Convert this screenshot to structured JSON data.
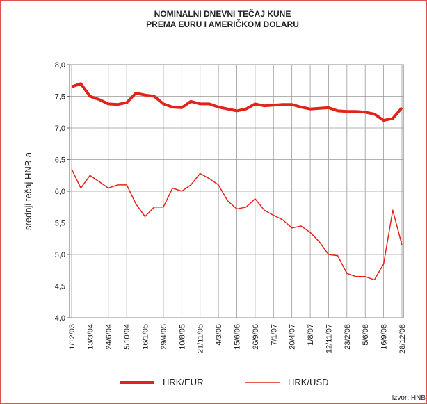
{
  "chart_data": {
    "type": "line",
    "title": [
      "NOMINALNI DNEVNI TEČAJ KUNE",
      "PREMA EURU I AMERIČKOM DOLARU"
    ],
    "y_label": "srednji tečaj HNB-a",
    "source": "Izvor: HNB",
    "categories": [
      "1/12/03.",
      null,
      "13/3/04.",
      null,
      "24/6/04.",
      null,
      "5/10/04.",
      null,
      "16/1/05.",
      null,
      "29/4/05.",
      null,
      "10/8/05.",
      null,
      "21/11/05.",
      null,
      "4/3/06.",
      null,
      "15/6/06.",
      null,
      "26/9/06.",
      null,
      "7/1/07.",
      null,
      "20/4/07.",
      null,
      "1/8/07.",
      null,
      "12/11/07.",
      null,
      "23/2/08.",
      null,
      "5/6/08.",
      null,
      "16/9/08.",
      null,
      "28/12/08."
    ],
    "series": [
      {
        "name": "HRK/EUR",
        "color": "#e2231a",
        "width": 4,
        "values": [
          7.65,
          7.7,
          7.5,
          7.45,
          7.38,
          7.37,
          7.4,
          7.55,
          7.52,
          7.5,
          7.38,
          7.33,
          7.32,
          7.42,
          7.38,
          7.38,
          7.33,
          7.3,
          7.27,
          7.3,
          7.38,
          7.35,
          7.36,
          7.37,
          7.37,
          7.33,
          7.3,
          7.31,
          7.32,
          7.27,
          7.26,
          7.26,
          7.25,
          7.22,
          7.12,
          7.15,
          7.32
        ]
      },
      {
        "name": "HRK/USD",
        "color": "#e2231a",
        "width": 1.5,
        "values": [
          6.35,
          6.05,
          6.25,
          6.15,
          6.05,
          6.1,
          6.1,
          5.8,
          5.6,
          5.75,
          5.75,
          6.05,
          6.0,
          6.1,
          6.28,
          6.2,
          6.1,
          5.85,
          5.72,
          5.75,
          5.88,
          5.7,
          5.62,
          5.55,
          5.42,
          5.45,
          5.35,
          5.2,
          5.0,
          4.98,
          4.7,
          4.65,
          4.65,
          4.6,
          4.85,
          5.7,
          5.15
        ]
      }
    ],
    "ylim": [
      4,
      8
    ],
    "yticks": [
      {
        "value": 4,
        "label": "4,0"
      },
      {
        "value": 4.5,
        "label": "4,5"
      },
      {
        "value": 5,
        "label": "5,0"
      },
      {
        "value": 5.5,
        "label": "5,5"
      },
      {
        "value": 6,
        "label": "6,0"
      },
      {
        "value": 6.5,
        "label": "6,5"
      },
      {
        "value": 7,
        "label": "7,0"
      },
      {
        "value": 7.5,
        "label": "7,5"
      },
      {
        "value": 8,
        "label": "8,0"
      }
    ],
    "grid": true
  }
}
